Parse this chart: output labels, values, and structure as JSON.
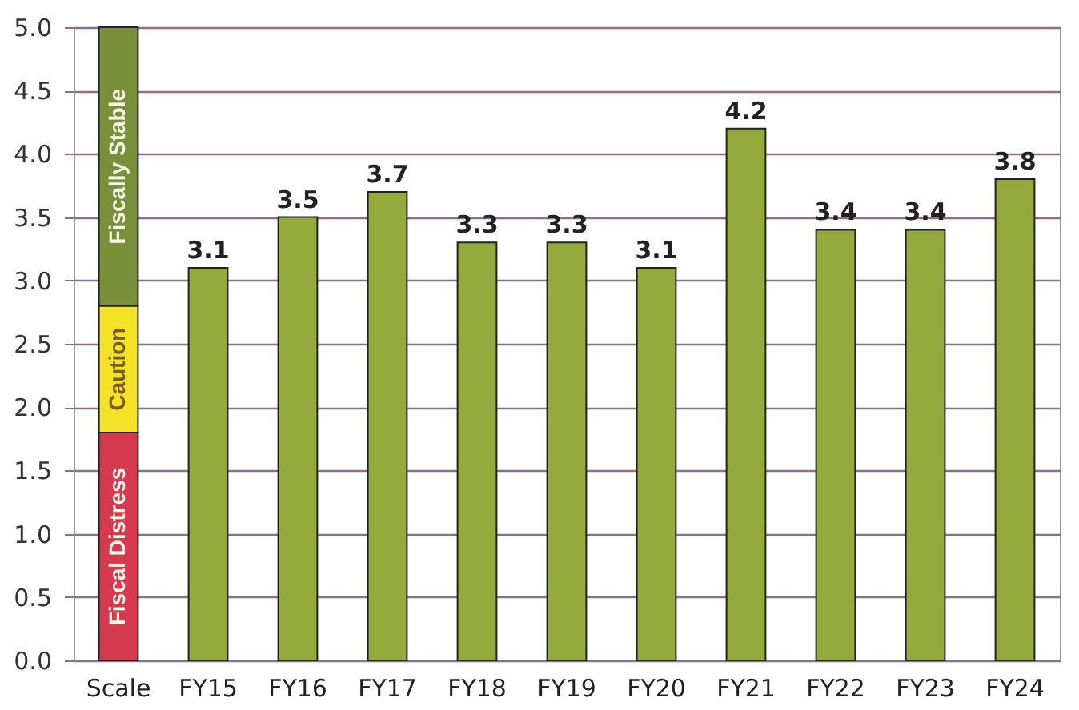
{
  "chart_data": {
    "type": "bar",
    "stacked": true,
    "categories": [
      "Scale",
      "FY15",
      "FY16",
      "FY17",
      "FY18",
      "FY19",
      "FY20",
      "FY21",
      "FY22",
      "FY23",
      "FY24"
    ],
    "series": [
      {
        "name": "Fiscal Distress",
        "color": "#d63a4e",
        "values": [
          1.8,
          null,
          null,
          null,
          null,
          null,
          null,
          null,
          null,
          null,
          null
        ]
      },
      {
        "name": "Caution",
        "color": "#f4e226",
        "values": [
          1.0,
          null,
          null,
          null,
          null,
          null,
          null,
          null,
          null,
          null,
          null
        ]
      },
      {
        "name": "Fiscally Stable",
        "color": "#7a8f38",
        "values": [
          2.2,
          null,
          null,
          null,
          null,
          null,
          null,
          null,
          null,
          null,
          null
        ]
      },
      {
        "color": "#95aa3c",
        "values": [
          null,
          3.1,
          3.5,
          3.7,
          3.3,
          3.3,
          3.1,
          4.2,
          3.4,
          3.4,
          3.8
        ],
        "value_labels": [
          null,
          "3.1",
          "3.5",
          "3.7",
          "3.3",
          "3.3",
          "3.1",
          "4.2",
          "3.4",
          "3.4",
          "3.8"
        ]
      }
    ],
    "ylim": [
      0,
      5
    ],
    "yticks": [
      {
        "value": 0,
        "label": "0.0"
      },
      {
        "value": 0.5,
        "label": "0.5"
      },
      {
        "value": 1,
        "label": "1.0"
      },
      {
        "value": 1.5,
        "label": "1.5"
      },
      {
        "value": 2,
        "label": "2.0"
      },
      {
        "value": 2.5,
        "label": "2.5"
      },
      {
        "value": 3,
        "label": "3.0"
      },
      {
        "value": 3.5,
        "label": "3.5"
      },
      {
        "value": 4,
        "label": "4.0"
      },
      {
        "value": 4.5,
        "label": "4.5"
      },
      {
        "value": 5,
        "label": "5.0"
      }
    ],
    "grid": "y"
  }
}
